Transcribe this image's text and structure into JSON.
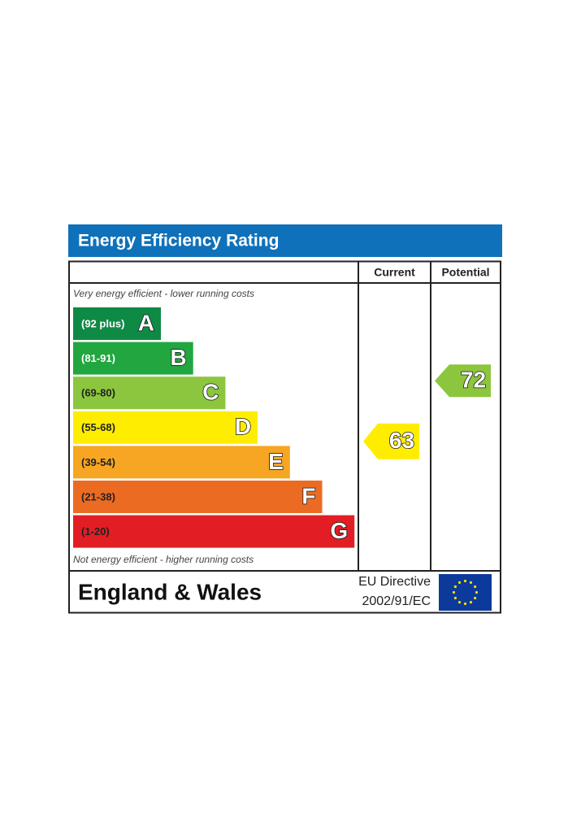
{
  "title": "Energy Efficiency Rating",
  "columns": [
    "Current",
    "Potential"
  ],
  "top_note": "Very energy efficient - lower running costs",
  "bottom_note": "Not energy efficient - higher running costs",
  "bands": [
    {
      "range": "(92 plus)",
      "letter": "A",
      "color": "#0f8a45"
    },
    {
      "range": "(81-91)",
      "letter": "B",
      "color": "#22a63f"
    },
    {
      "range": "(69-80)",
      "letter": "C",
      "color": "#8cc63e"
    },
    {
      "range": "(55-68)",
      "letter": "D",
      "color": "#ffed00"
    },
    {
      "range": "(39-54)",
      "letter": "E",
      "color": "#f6a623"
    },
    {
      "range": "(21-38)",
      "letter": "F",
      "color": "#ec6b23"
    },
    {
      "range": "(1-20)",
      "letter": "G",
      "color": "#e31d24"
    }
  ],
  "current": 63,
  "potential": 72,
  "footer": {
    "region": "England & Wales",
    "directive": [
      "EU Directive",
      "2002/91/EC"
    ]
  }
}
